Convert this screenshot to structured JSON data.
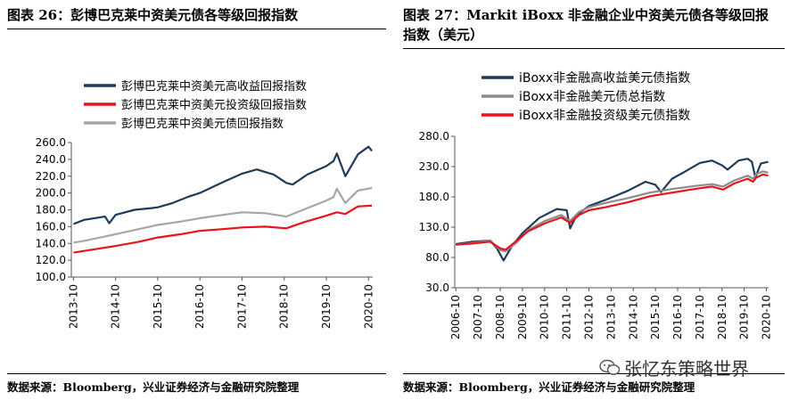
{
  "left": {
    "title": "图表 26：彭博巴克莱中资美元债各等级回报指数",
    "source": "数据来源：Bloomberg，兴业证券经济与金融研究院整理"
  },
  "right": {
    "title": "图表 27：Markit iBoxx 非金融企业中资美元债各等级回报指数（美元）",
    "source": "数据来源：Bloomberg，兴业证券经济与金融研究院整理"
  },
  "watermark": {
    "text": "张忆东策略世界",
    "icon": "wechat-bubble-icon"
  },
  "chart_data": [
    {
      "type": "line",
      "legend_position": "top",
      "grid": false,
      "ylim": [
        100,
        260
      ],
      "y_ticks": [
        "260.0",
        "240.0",
        "220.0",
        "200.0",
        "180.0",
        "160.0",
        "140.0",
        "120.0",
        "100.0"
      ],
      "x_ticks": [
        "2013-10",
        "2014-10",
        "2015-10",
        "2016-10",
        "2017-10",
        "2018-10",
        "2019-10",
        "2020-10"
      ],
      "series": [
        {
          "name": "彭博巴克莱中资美元高收益回报指数",
          "color": "#1f3b5a",
          "x": [
            2013.75,
            2014.0,
            2014.5,
            2014.6,
            2014.75,
            2015.2,
            2015.6,
            2015.75,
            2016.1,
            2016.5,
            2016.75,
            2017.3,
            2017.75,
            2018.1,
            2018.5,
            2018.8,
            2018.95,
            2019.3,
            2019.75,
            2019.92,
            2020.0,
            2020.2,
            2020.5,
            2020.75,
            2020.83
          ],
          "y": [
            163,
            168,
            172,
            164,
            174,
            180,
            182,
            183,
            188,
            196,
            200,
            213,
            223,
            228,
            222,
            212,
            210,
            222,
            232,
            238,
            247,
            220,
            246,
            255,
            250
          ]
        },
        {
          "name": "彭博巴克莱中资美元投资级回报指数",
          "color": "#e8141c",
          "x": [
            2013.75,
            2014.0,
            2014.75,
            2015.3,
            2015.75,
            2016.3,
            2016.75,
            2017.3,
            2017.75,
            2018.3,
            2018.8,
            2019.2,
            2019.75,
            2020.0,
            2020.2,
            2020.5,
            2020.83
          ],
          "y": [
            129,
            131,
            137,
            142,
            147,
            151,
            155,
            157,
            159,
            160,
            158,
            165,
            173,
            177,
            175,
            184,
            185
          ]
        },
        {
          "name": "彭博巴克莱中资美元债回报指数",
          "color": "#a6a6a6",
          "x": [
            2013.75,
            2014.0,
            2014.75,
            2015.3,
            2015.75,
            2016.3,
            2016.75,
            2017.3,
            2017.75,
            2018.3,
            2018.8,
            2019.2,
            2019.75,
            2019.92,
            2020.0,
            2020.2,
            2020.5,
            2020.83
          ],
          "y": [
            141,
            143,
            151,
            157,
            162,
            166,
            170,
            174,
            177,
            176,
            172,
            180,
            191,
            195,
            205,
            188,
            203,
            206
          ]
        }
      ]
    },
    {
      "type": "line",
      "legend_position": "top",
      "grid": false,
      "ylim": [
        30,
        280
      ],
      "y_ticks": [
        "280.0",
        "230.0",
        "180.0",
        "130.0",
        "80.0",
        "30.0"
      ],
      "x_ticks": [
        "2006-10",
        "2007-10",
        "2008-10",
        "2009-10",
        "2010-10",
        "2011-10",
        "2012-10",
        "2013-10",
        "2014-10",
        "2015-10",
        "2016-10",
        "2017-10",
        "2018-10",
        "2019-10",
        "2020-10"
      ],
      "series": [
        {
          "name": "iBoxx非金融高收益美元债指数",
          "color": "#1f3b5a",
          "x": [
            2006.75,
            2007.5,
            2008.3,
            2008.6,
            2008.9,
            2009.3,
            2009.75,
            2010.5,
            2011.3,
            2011.75,
            2011.9,
            2012.2,
            2012.75,
            2013.5,
            2014.5,
            2015.3,
            2015.75,
            2016.0,
            2016.5,
            2017.0,
            2017.75,
            2018.3,
            2018.75,
            2019.0,
            2019.5,
            2019.9,
            2020.1,
            2020.25,
            2020.5,
            2020.83
          ],
          "y": [
            102,
            106,
            108,
            95,
            75,
            100,
            120,
            145,
            160,
            158,
            128,
            150,
            165,
            175,
            190,
            205,
            200,
            188,
            210,
            220,
            236,
            240,
            232,
            225,
            240,
            243,
            238,
            212,
            235,
            238
          ]
        },
        {
          "name": "iBoxx非金融美元债总指数",
          "color": "#8c8c8c",
          "x": [
            2006.75,
            2007.5,
            2008.3,
            2008.75,
            2009.0,
            2009.5,
            2010.0,
            2010.75,
            2011.5,
            2011.9,
            2012.3,
            2012.75,
            2013.5,
            2014.5,
            2015.5,
            2016.5,
            2017.5,
            2018.3,
            2018.8,
            2019.3,
            2019.9,
            2020.15,
            2020.3,
            2020.6,
            2020.83
          ],
          "y": [
            101,
            104,
            108,
            92,
            90,
            105,
            125,
            140,
            150,
            140,
            155,
            163,
            170,
            178,
            187,
            193,
            198,
            201,
            197,
            207,
            215,
            210,
            218,
            222,
            220
          ]
        },
        {
          "name": "iBoxx非金融投资级美元债指数",
          "color": "#e8141c",
          "x": [
            2006.75,
            2007.5,
            2008.3,
            2008.75,
            2009.0,
            2009.5,
            2010.0,
            2010.75,
            2011.5,
            2011.9,
            2012.3,
            2012.75,
            2013.5,
            2014.5,
            2015.5,
            2016.5,
            2017.5,
            2018.3,
            2018.8,
            2019.3,
            2019.9,
            2020.15,
            2020.3,
            2020.6,
            2020.83
          ],
          "y": [
            101,
            103,
            106,
            95,
            93,
            108,
            123,
            136,
            146,
            137,
            150,
            158,
            163,
            171,
            181,
            187,
            193,
            197,
            192,
            202,
            210,
            205,
            212,
            217,
            215
          ]
        }
      ]
    }
  ]
}
